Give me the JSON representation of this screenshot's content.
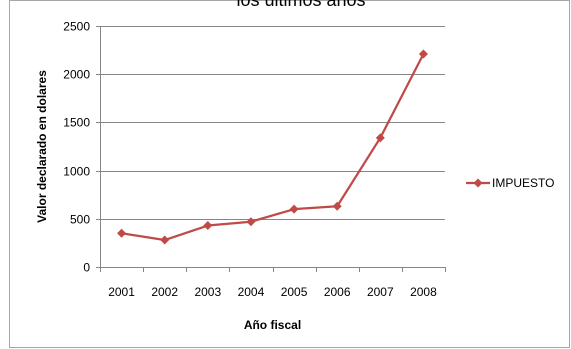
{
  "chart_data": {
    "type": "line",
    "title": "los últimos años",
    "xlabel": "Año fiscal",
    "ylabel": "Valor declarado en dolares",
    "categories": [
      "2001",
      "2002",
      "2003",
      "2004",
      "2005",
      "2006",
      "2007",
      "2008"
    ],
    "series": [
      {
        "name": "IMPUESTO",
        "color": "#be4b48",
        "marker": "diamond",
        "values": [
          350,
          280,
          430,
          470,
          600,
          630,
          1340,
          2210
        ]
      }
    ],
    "ylim": [
      0,
      2500
    ],
    "yticks": [
      0,
      500,
      1000,
      1500,
      2000,
      2500
    ],
    "grid": true,
    "legend": "right"
  }
}
